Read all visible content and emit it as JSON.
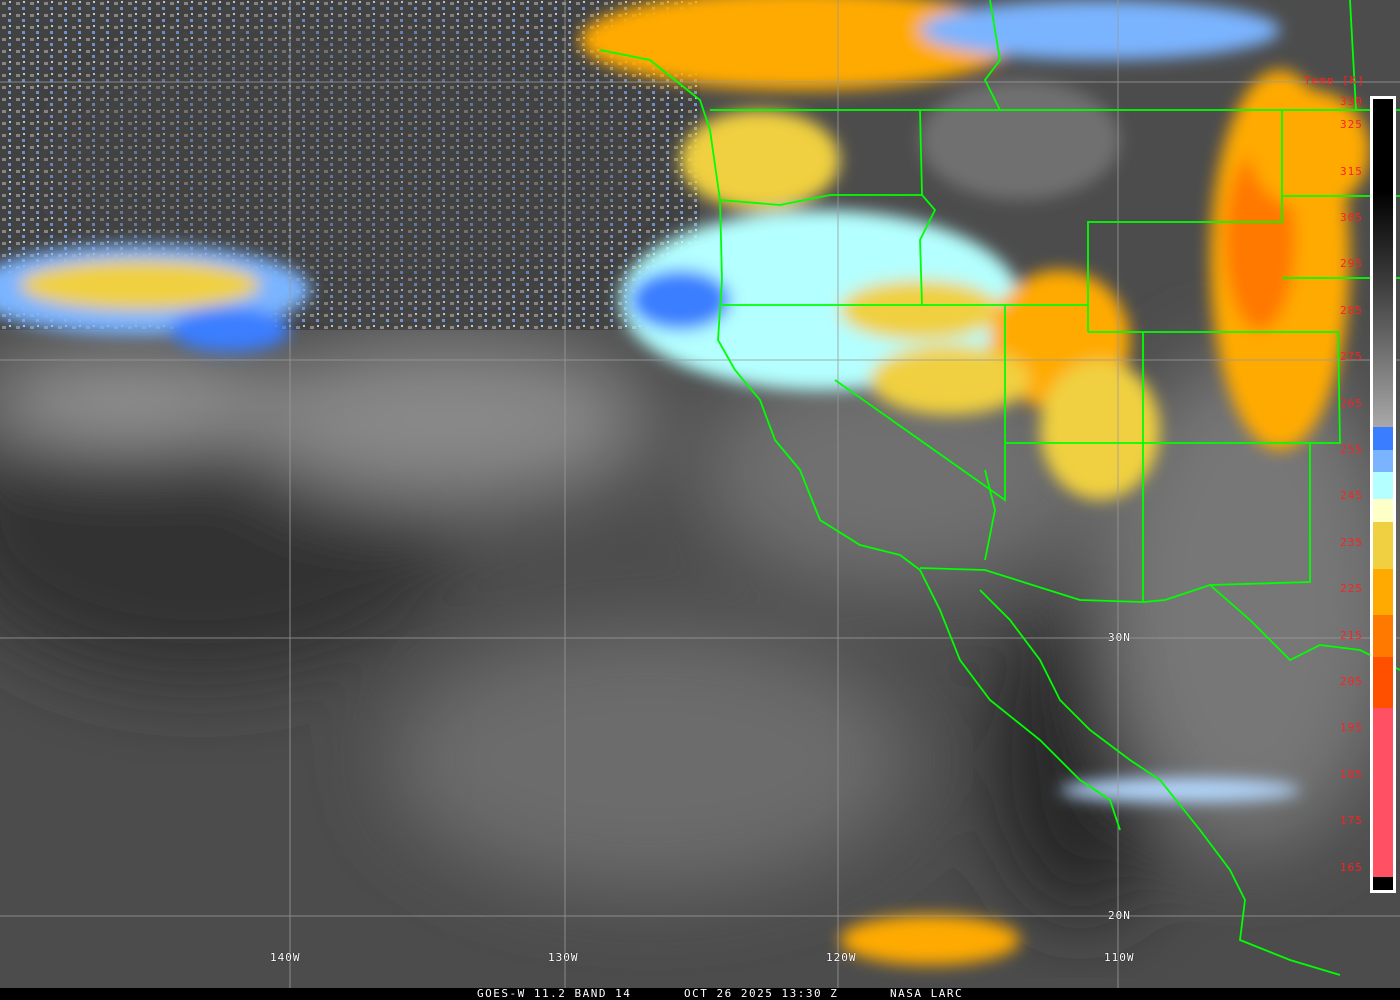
{
  "caption": {
    "satellite": "GOES-W 11.2 BAND 14",
    "datetime": "OCT 26 2025 13:30 Z",
    "credit": "NASA LARC"
  },
  "colorbar": {
    "title": "Temp [K]",
    "ticks": [
      "330",
      "325",
      "315",
      "305",
      "295",
      "285",
      "275",
      "265",
      "255",
      "245",
      "235",
      "225",
      "215",
      "205",
      "195",
      "185",
      "175",
      "165"
    ],
    "colors": {
      "blue": "#3a7eff",
      "light_blue": "#7ab4ff",
      "pale_cyan": "#b4ffff",
      "pale_yellow": "#ffffc8",
      "yellow": "#f0d040",
      "amber": "#ffaa00",
      "orange": "#ff7800",
      "red_orange": "#ff5000",
      "pink": "#ff5064"
    }
  },
  "grid_labels": {
    "lat": [
      "30N",
      "20N"
    ],
    "lon": [
      "140W",
      "130W",
      "120W",
      "110W"
    ]
  },
  "border_color": "#00ff00"
}
